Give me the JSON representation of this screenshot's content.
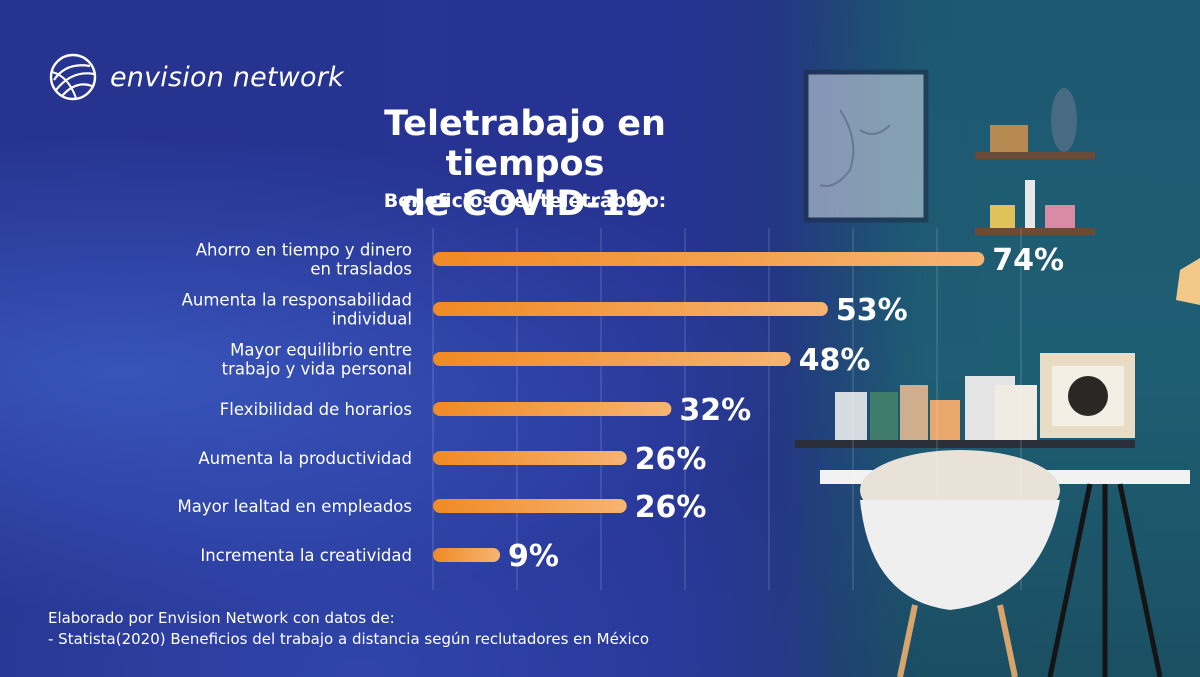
{
  "brand": {
    "name": "envision network"
  },
  "header": {
    "title_line1": "Teletrabajo en tiempos",
    "title_line2": "de COVID-19",
    "subtitle": "Beneficios del teletrabajo:"
  },
  "chart_data": {
    "type": "bar",
    "orientation": "horizontal",
    "title": "Teletrabajo en tiempos de COVID-19",
    "subtitle": "Beneficios del teletrabajo:",
    "categories": [
      [
        "Ahorro en tiempo y dinero",
        "en traslados"
      ],
      [
        "Aumenta la responsabilidad",
        "individual"
      ],
      [
        "Mayor equilibrio entre",
        "trabajo y vida personal"
      ],
      [
        "Flexibilidad de horarios"
      ],
      [
        "Aumenta la productividad"
      ],
      [
        "Mayor lealtad en empleados"
      ],
      [
        "Incrementa la creatividad"
      ]
    ],
    "values": [
      74,
      53,
      48,
      32,
      26,
      26,
      9
    ],
    "value_labels": [
      "74%",
      "53%",
      "48%",
      "32%",
      "26%",
      "26%",
      "9%"
    ],
    "unit": "%",
    "grid": true,
    "bar_color_start": "#f08a24",
    "bar_color_end": "#f6b472"
  },
  "footer": {
    "line1": "Elaborado por Envision Network con datos de:",
    "line2": "- Statista(2020) Beneficios del trabajo a distancia según reclutadores en México"
  },
  "icons": {
    "logo": "globe-swirl-icon"
  }
}
